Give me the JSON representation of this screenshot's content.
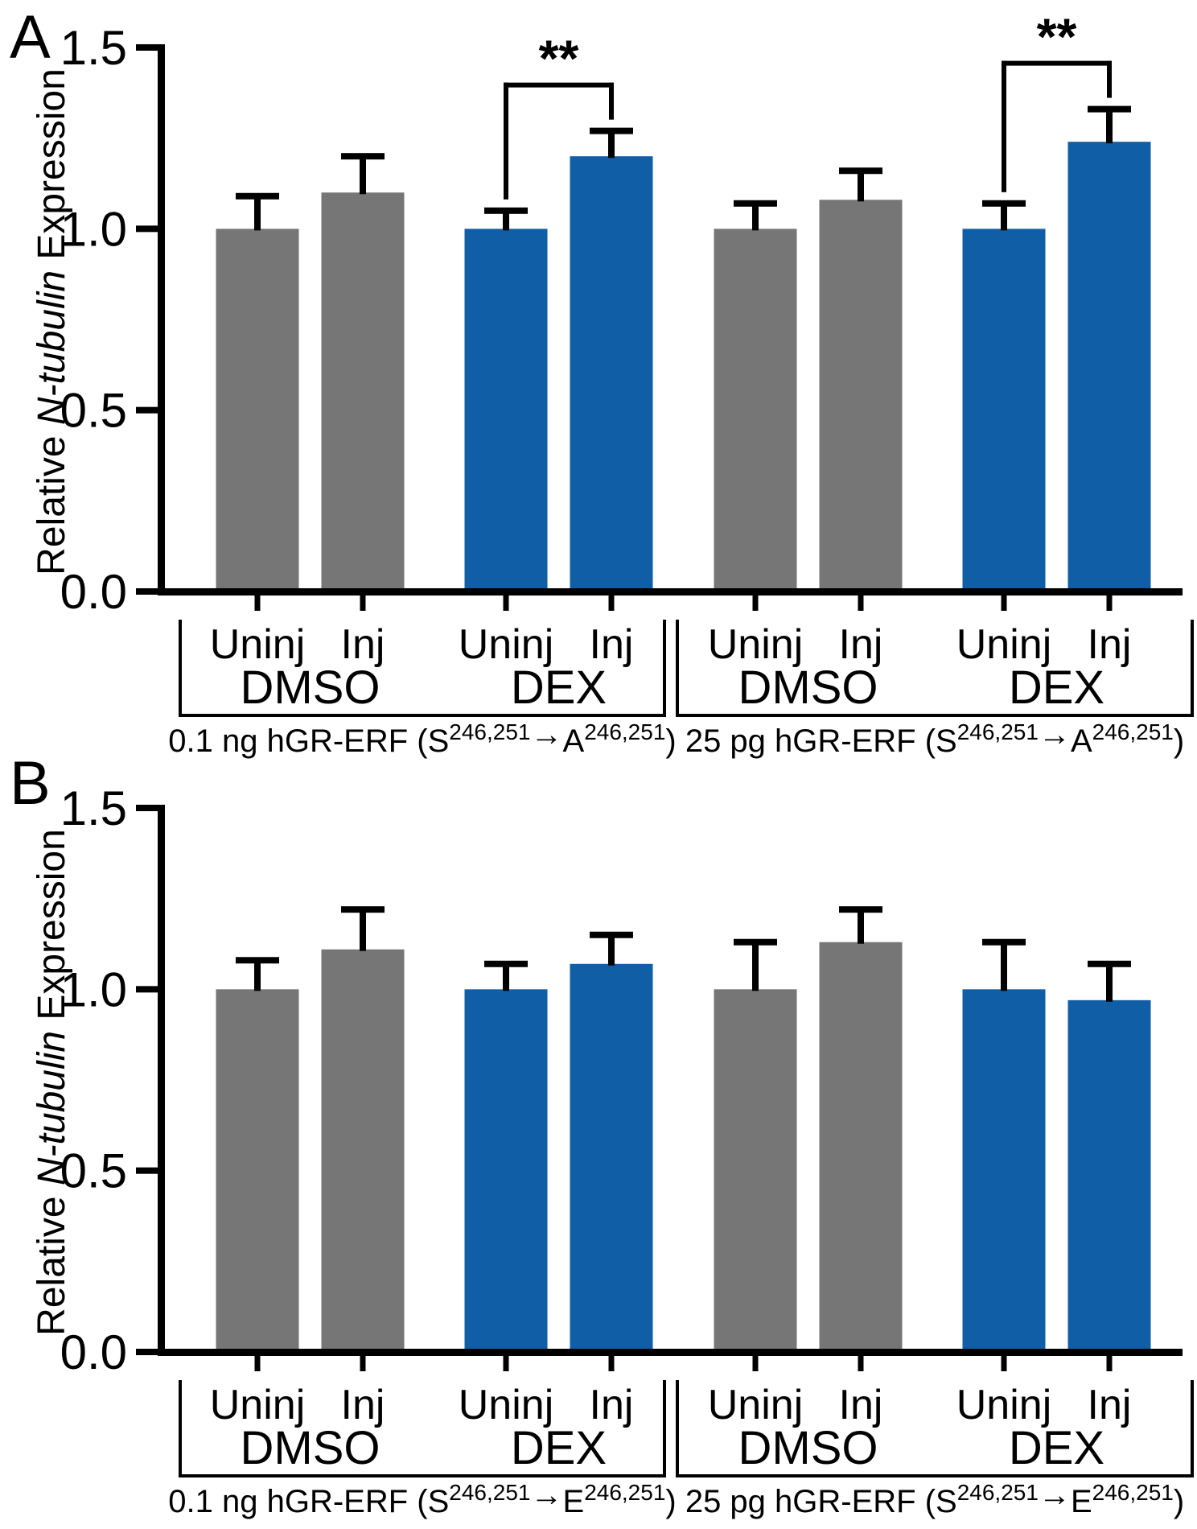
{
  "figure": {
    "background": "#FFFFFF",
    "colors": {
      "bar_gray": "#767676",
      "bar_blue": "#105FA6",
      "axis": "#000000",
      "text": "#000000"
    }
  },
  "chart_data": [
    {
      "type": "bar",
      "panel_label": "A",
      "ylabel_pre": "Relative ",
      "ylabel_italic": "N-tubulin",
      "ylabel_post": " Expression",
      "ylim": [
        0,
        1.5
      ],
      "yticks": [
        "0.0",
        "0.5",
        "1.0",
        "1.5"
      ],
      "ytick_values": [
        0,
        0.5,
        1.0,
        1.5
      ],
      "categories": [
        "Uninj",
        "Inj",
        "Uninj",
        "Inj",
        "Uninj",
        "Inj",
        "Uninj",
        "Inj"
      ],
      "values": [
        1.0,
        1.1,
        1.0,
        1.2,
        1.0,
        1.08,
        1.0,
        1.24
      ],
      "errors": [
        0.09,
        0.1,
        0.05,
        0.07,
        0.07,
        0.08,
        0.07,
        0.09
      ],
      "bar_colors": [
        "gray",
        "gray",
        "blue",
        "blue",
        "gray",
        "gray",
        "blue",
        "blue"
      ],
      "treatment_labels": [
        "DMSO",
        "DEX",
        "DMSO",
        "DEX"
      ],
      "group_titles": [
        [
          {
            "t": "0.1 ng hGR-ERF (S"
          },
          {
            "t": "246,251",
            "style": "sup"
          },
          {
            "t": "→",
            "style": "arrow"
          },
          {
            "t": "A"
          },
          {
            "t": "246,251",
            "style": "sup"
          },
          {
            "t": ")"
          }
        ],
        [
          {
            "t": "25 pg hGR-ERF (S"
          },
          {
            "t": "246,251",
            "style": "sup"
          },
          {
            "t": "→",
            "style": "arrow"
          },
          {
            "t": "A"
          },
          {
            "t": "246,251",
            "style": "sup"
          },
          {
            "t": ")"
          }
        ]
      ],
      "significance": [
        {
          "bars": [
            2,
            3
          ],
          "label": "**"
        },
        {
          "bars": [
            6,
            7
          ],
          "label": "**"
        }
      ]
    },
    {
      "type": "bar",
      "panel_label": "B",
      "ylabel_pre": "Relative ",
      "ylabel_italic": "N-tubulin",
      "ylabel_post": " Expression",
      "ylim": [
        0,
        1.5
      ],
      "yticks": [
        "0.0",
        "0.5",
        "1.0",
        "1.5"
      ],
      "ytick_values": [
        0,
        0.5,
        1.0,
        1.5
      ],
      "categories": [
        "Uninj",
        "Inj",
        "Uninj",
        "Inj",
        "Uninj",
        "Inj",
        "Uninj",
        "Inj"
      ],
      "values": [
        1.0,
        1.11,
        1.0,
        1.07,
        1.0,
        1.13,
        1.0,
        0.97
      ],
      "errors": [
        0.08,
        0.11,
        0.07,
        0.08,
        0.13,
        0.09,
        0.13,
        0.1
      ],
      "bar_colors": [
        "gray",
        "gray",
        "blue",
        "blue",
        "gray",
        "gray",
        "blue",
        "blue"
      ],
      "treatment_labels": [
        "DMSO",
        "DEX",
        "DMSO",
        "DEX"
      ],
      "group_titles": [
        [
          {
            "t": "0.1 ng hGR-ERF (S"
          },
          {
            "t": "246,251",
            "style": "sup"
          },
          {
            "t": "→",
            "style": "arrow"
          },
          {
            "t": "E"
          },
          {
            "t": "246,251",
            "style": "sup"
          },
          {
            "t": ")"
          }
        ],
        [
          {
            "t": "25 pg hGR-ERF (S"
          },
          {
            "t": "246,251",
            "style": "sup"
          },
          {
            "t": "→",
            "style": "arrow"
          },
          {
            "t": "E"
          },
          {
            "t": "246,251",
            "style": "sup"
          },
          {
            "t": ")"
          }
        ]
      ],
      "significance": []
    }
  ]
}
